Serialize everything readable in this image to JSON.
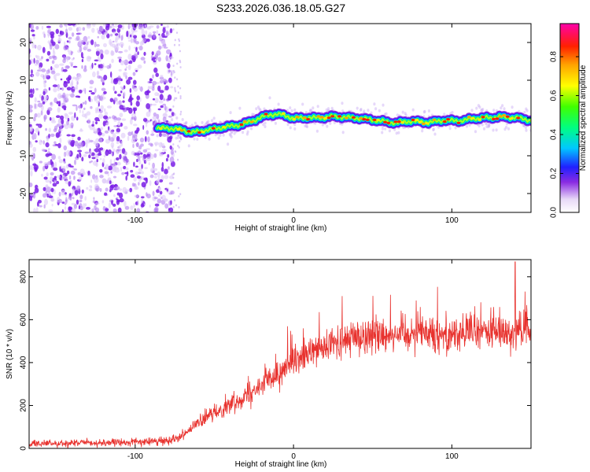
{
  "figure": {
    "title": "S233.2026.036.18.05.G27"
  },
  "chart_data": [
    {
      "type": "heatmap",
      "xlabel": "Height of straight line (km)",
      "ylabel": "Frequency (Hz)",
      "xlim": [
        -167,
        150
      ],
      "ylim": [
        -25,
        25
      ],
      "xticks": [
        -100,
        0,
        100
      ],
      "xtick_labels": [
        "-100",
        "0",
        "100"
      ],
      "yticks": [
        -20,
        -10,
        0,
        10,
        20
      ],
      "ytick_labels": [
        "-20",
        "-10",
        "0",
        "10",
        "20"
      ],
      "colorbar": {
        "label": "Normalized spectral amplitude",
        "range": [
          0,
          0.97
        ],
        "ticks": [
          0,
          0.2,
          0.4,
          0.6,
          0.8
        ],
        "tick_labels": [
          "0.0",
          "0.2",
          "0.4",
          "0.6",
          "0.8"
        ]
      },
      "noise_region_x": [
        -167,
        -76
      ],
      "ridge": {
        "x": [
          -86,
          -80,
          -75,
          -70,
          -65,
          -60,
          -55,
          -50,
          -45,
          -40,
          -35,
          -30,
          -25,
          -20,
          -15,
          -10,
          -5,
          0,
          5,
          10,
          15,
          20,
          25,
          30,
          35,
          40,
          45,
          50,
          55,
          60,
          65,
          70,
          75,
          80,
          85,
          90,
          95,
          100,
          105,
          110,
          115,
          120,
          125,
          130,
          135,
          140,
          145,
          150
        ],
        "frequency": [
          -2.8,
          -2.6,
          -2.9,
          -3.1,
          -3.8,
          -3.6,
          -3.2,
          -2.9,
          -2.5,
          -2.2,
          -1.9,
          -1.4,
          -0.6,
          0.2,
          0.9,
          1.0,
          0.6,
          -0.1,
          0.0,
          0.1,
          0.0,
          0.2,
          0.4,
          0.3,
          0.1,
          0.0,
          -0.3,
          -0.5,
          -0.8,
          -1.1,
          -1.3,
          -1.0,
          -0.8,
          -1.0,
          -1.2,
          -0.9,
          -0.6,
          -0.7,
          -0.8,
          -0.4,
          -0.1,
          0.1,
          0.0,
          0.4,
          0.1,
          0.2,
          -0.3,
          -0.6
        ]
      }
    },
    {
      "type": "line",
      "xlabel": "Height of straight line (km)",
      "ylabel": "SNR (10 * v/v)",
      "xlim": [
        -167,
        150
      ],
      "ylim": [
        0,
        880
      ],
      "xticks": [
        -100,
        0,
        100
      ],
      "xtick_labels": [
        "-100",
        "0",
        "100"
      ],
      "yticks": [
        0,
        200,
        400,
        600,
        800
      ],
      "ytick_labels": [
        "0",
        "200",
        "400",
        "600",
        "800"
      ],
      "color": "#e8322e",
      "trend": {
        "x": [
          -167,
          -140,
          -110,
          -85,
          -78,
          -72,
          -65,
          -60,
          -50,
          -40,
          -30,
          -20,
          -10,
          0,
          10,
          20,
          30,
          40,
          50,
          60,
          70,
          80,
          90,
          100,
          110,
          120,
          130,
          140,
          150
        ],
        "y": [
          22,
          24,
          27,
          32,
          40,
          55,
          90,
          120,
          165,
          205,
          250,
          300,
          345,
          395,
          435,
          470,
          500,
          520,
          530,
          535,
          540,
          542,
          538,
          535,
          540,
          545,
          540,
          550,
          545
        ]
      },
      "peak": {
        "x": 140,
        "y": 870
      }
    }
  ]
}
